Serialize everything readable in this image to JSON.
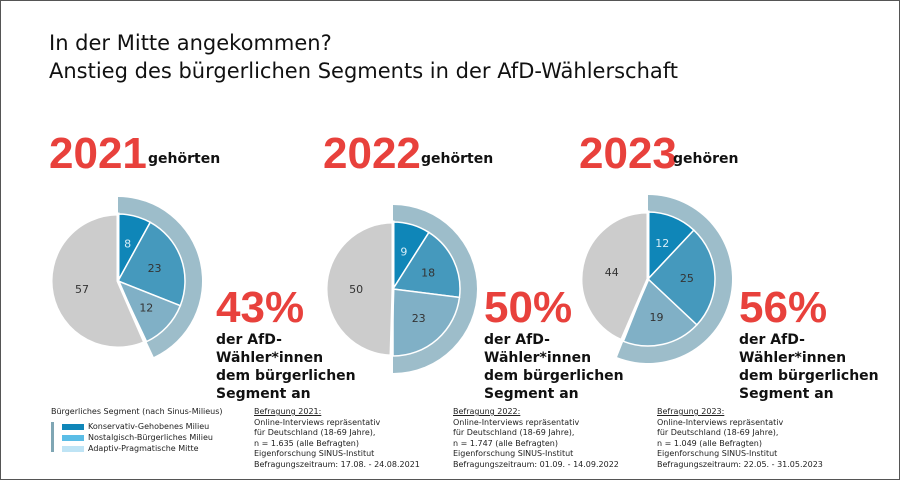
{
  "title_line1": "In der Mitte angekommen?",
  "title_line2": "Anstieg des bürgerlichen Segments in der AfD-Wählerschaft",
  "colors": {
    "konservativ": "#0f86b8",
    "nostalgisch": "#4599bd",
    "adaptiv": "#80b0c6",
    "ring": "#9dbdca",
    "rest": "#cccccc",
    "accent": "#e8413c"
  },
  "chart_data": {
    "type": "pie",
    "unit": "%",
    "charts": [
      {
        "year": "2021",
        "year_word": "gehörten",
        "values": {
          "Konservativ-Gehobenes Milieu": 8,
          "Nostalgisch-Bürgerliches Milieu": 23,
          "Adaptiv-Pragmatische Mitte": 12,
          "rest": 57
        },
        "segment_total": "43%"
      },
      {
        "year": "2022",
        "year_word": "gehörten",
        "values": {
          "Konservativ-Gehobenes Milieu": 9,
          "Nostalgisch-Bürgerliches Milieu": 18,
          "Adaptiv-Pragmatische Mitte": 23,
          "rest": 50
        },
        "segment_total": "50%"
      },
      {
        "year": "2023",
        "year_word": "gehören",
        "values": {
          "Konservativ-Gehobenes Milieu": 12,
          "Nostalgisch-Bürgerliches Milieu": 25,
          "Adaptiv-Pragmatische Mitte": 19,
          "rest": 44
        },
        "segment_total": "56%"
      }
    ],
    "series_order": [
      "Konservativ-Gehobenes Milieu",
      "Nostalgisch-Bürgerliches Milieu",
      "Adaptiv-Pragmatische Mitte",
      "rest"
    ]
  },
  "desc_lines": [
    "der AfD-",
    "Wähler*innen",
    "dem bürgerlichen",
    "Segment an"
  ],
  "legend": {
    "title": "Bürgerliches Segment (nach Sinus-Milieus)",
    "items": [
      "Konservativ-Gehobenes Milieu",
      "Nostalgisch-Bürgerliches Milieu",
      "Adaptiv-Pragmatische Mitte"
    ]
  },
  "surveys": [
    {
      "heading": "Befragung 2021:",
      "lines": [
        "Online-Interviews repräsentativ",
        "für Deutschland (18-69 Jahre),",
        "n = 1.635 (alle Befragten)",
        "Eigenforschung SINUS-Institut",
        "Befragungszeitraum: 17.08. - 24.08.2021"
      ]
    },
    {
      "heading": "Befragung 2022:",
      "lines": [
        "Online-Interviews repräsentativ",
        "für Deutschland (18-69 Jahre),",
        "n = 1.747 (alle Befragten)",
        "Eigenforschung SINUS-Institut",
        "Befragungszeitraum: 01.09. - 14.09.2022"
      ]
    },
    {
      "heading": "Befragung 2023:",
      "lines": [
        "Online-Interviews repräsentativ",
        "für Deutschland (18-69 Jahre),",
        "n = 1.049 (alle Befragten)",
        "Eigenforschung SINUS-Institut",
        "Befragungszeitraum: 22.05. - 31.05.2023"
      ]
    }
  ]
}
